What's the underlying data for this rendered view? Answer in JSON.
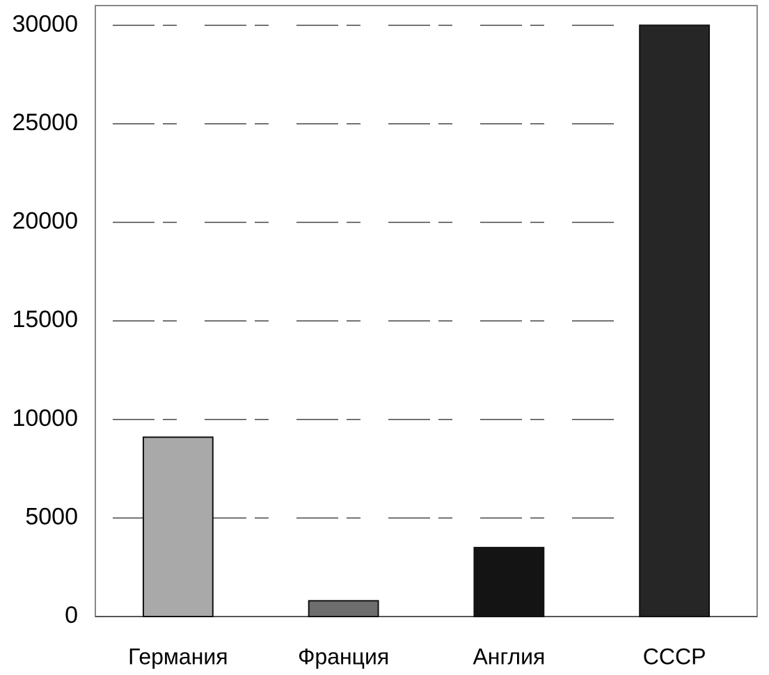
{
  "chart_data": {
    "type": "bar",
    "categories": [
      "Германия",
      "Франция",
      "Англия",
      "СССР"
    ],
    "values": [
      9100,
      800,
      3500,
      30000
    ],
    "colors": [
      "#a9a9a9",
      "#6e6e6e",
      "#141414",
      "#262626"
    ],
    "ylim": [
      0,
      31000
    ],
    "yticks": [
      0,
      5000,
      10000,
      15000,
      20000,
      25000,
      30000
    ],
    "grid": true
  }
}
